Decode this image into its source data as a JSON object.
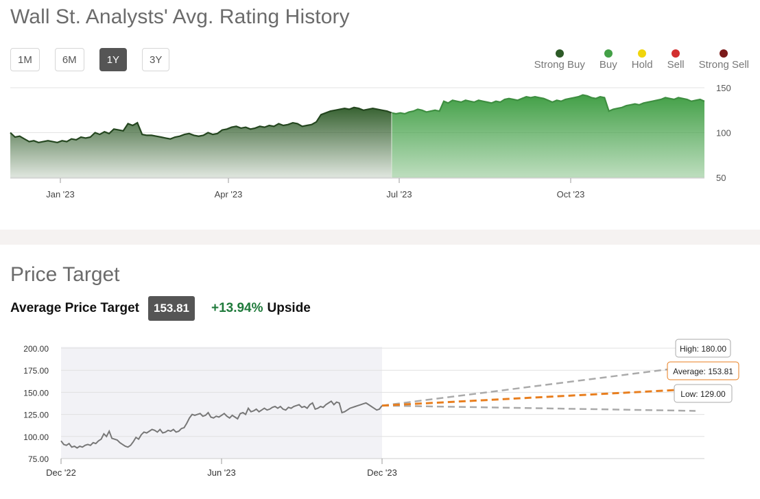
{
  "rating_section": {
    "title": "Wall St. Analysts' Avg. Rating History",
    "range_buttons": [
      {
        "label": "1M",
        "active": false
      },
      {
        "label": "6M",
        "active": false
      },
      {
        "label": "1Y",
        "active": true
      },
      {
        "label": "3Y",
        "active": false
      }
    ],
    "legend": [
      {
        "label": "Strong Buy",
        "color": "#2d5a27"
      },
      {
        "label": "Buy",
        "color": "#43a047"
      },
      {
        "label": "Hold",
        "color": "#f0d50c"
      },
      {
        "label": "Sell",
        "color": "#d32f2f"
      },
      {
        "label": "Strong Sell",
        "color": "#7b1a1a"
      }
    ]
  },
  "price_target_section": {
    "title": "Price Target",
    "avg_label": "Average Price Target",
    "avg_value": "153.81",
    "upside_pct": "+13.94%",
    "upside_word": "Upside"
  },
  "chart_data": [
    {
      "type": "area",
      "title": "Wall St. Analysts' Avg. Rating History",
      "x_ticks": [
        "Jan '23",
        "Apr '23",
        "Jul '23",
        "Oct '23"
      ],
      "y_ticks": [
        50,
        100,
        150
      ],
      "ylim": [
        50,
        150
      ],
      "grid": true,
      "colors": {
        "strong_buy_fill": "#2d5a27",
        "buy_fill": "#43a047",
        "strong_buy_line": "#24461f",
        "buy_line": "#3e8e41"
      },
      "series": [
        {
          "values": [
            100,
            95,
            96,
            93,
            90,
            91,
            89,
            90,
            91,
            90,
            89,
            91,
            90,
            93,
            92,
            95,
            94,
            95,
            100,
            98,
            101,
            99,
            104,
            103,
            102,
            110,
            108,
            111,
            98,
            97,
            97,
            96,
            95,
            94,
            93,
            95,
            96,
            98,
            99,
            97,
            96,
            97,
            100,
            98,
            99,
            103,
            104,
            106,
            107,
            105,
            106,
            104,
            105,
            107,
            106,
            108,
            107,
            110,
            108,
            109,
            111,
            110,
            107,
            108,
            109,
            112,
            120,
            122,
            124,
            125,
            126,
            127,
            126,
            128,
            127,
            125,
            126,
            127,
            126,
            125,
            124,
            122
          ]
        },
        {
          "values": [
            122,
            121,
            122,
            121,
            123,
            124,
            126,
            125,
            123,
            124,
            125,
            124,
            135,
            133,
            136,
            135,
            134,
            136,
            135,
            134,
            136,
            135,
            134,
            133,
            135,
            134,
            137,
            138,
            137,
            136,
            138,
            140,
            139,
            140,
            139,
            138,
            136,
            134,
            136,
            135,
            137,
            138,
            139,
            140,
            142,
            141,
            139,
            138,
            140,
            139,
            124,
            126,
            127,
            128,
            130,
            131,
            132,
            131,
            133,
            134,
            135,
            136,
            137,
            139,
            138,
            137,
            139,
            138,
            137,
            135,
            136,
            137,
            135
          ]
        }
      ]
    },
    {
      "type": "line",
      "title": "Price Target",
      "x_ticks": [
        "Dec '22",
        "Jun '23",
        "Dec '23"
      ],
      "y_ticks": [
        75,
        100,
        125,
        150,
        175,
        200
      ],
      "ylim": [
        75,
        200
      ],
      "grid": true,
      "colors": {
        "history_shade": "#f2f2f6",
        "price_line": "#777777",
        "forecast_avg": "#e87e1e",
        "forecast_range": "#aaaaaa"
      },
      "series": [
        {
          "values": [
            95,
            91,
            90,
            92,
            88,
            89,
            87,
            89,
            88,
            90,
            91,
            90,
            93,
            92,
            95,
            97,
            103,
            100,
            106,
            98,
            97,
            96,
            93,
            91,
            89,
            88,
            90,
            94,
            99,
            97,
            102,
            105,
            104,
            106,
            108,
            107,
            105,
            108,
            104,
            105,
            107,
            106,
            108,
            105,
            106,
            109,
            110,
            115,
            121,
            125,
            124,
            125,
            126,
            123,
            124,
            127,
            122,
            121,
            123,
            122,
            124,
            126,
            123,
            121,
            124,
            122,
            120,
            126,
            127,
            125,
            132,
            128,
            129,
            131,
            128,
            130,
            132,
            130,
            131,
            133,
            134,
            132,
            134,
            131,
            130,
            133,
            132,
            134,
            135,
            136,
            133,
            134,
            132,
            136,
            138,
            131,
            132,
            134,
            133,
            136,
            138,
            140,
            136,
            139,
            138,
            127,
            128,
            130,
            132,
            133,
            134,
            135,
            136,
            137,
            138,
            136,
            134,
            132,
            130,
            131,
            135
          ]
        },
        {
          "name": "High",
          "label": "High: 180.00",
          "values": [
            135,
            180
          ]
        },
        {
          "name": "Average",
          "label": "Average: 153.81",
          "values": [
            135,
            153.81
          ]
        },
        {
          "name": "Low",
          "label": "Low: 129.00",
          "values": [
            135,
            129
          ]
        }
      ]
    }
  ]
}
